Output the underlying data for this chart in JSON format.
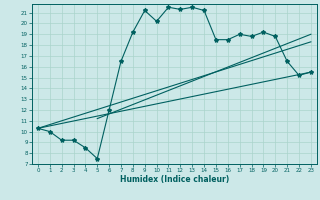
{
  "title": "",
  "xlabel": "Humidex (Indice chaleur)",
  "bg_color": "#cce8e8",
  "line_color": "#006060",
  "grid_color": "#aad4cc",
  "xlim": [
    -0.5,
    23.5
  ],
  "ylim": [
    7,
    21.8
  ],
  "yticks": [
    7,
    8,
    9,
    10,
    11,
    12,
    13,
    14,
    15,
    16,
    17,
    18,
    19,
    20,
    21
  ],
  "xticks": [
    0,
    1,
    2,
    3,
    4,
    5,
    6,
    7,
    8,
    9,
    10,
    11,
    12,
    13,
    14,
    15,
    16,
    17,
    18,
    19,
    20,
    21,
    22,
    23
  ],
  "scatter_x": [
    0,
    1,
    2,
    3,
    4,
    5,
    6,
    7,
    8,
    9,
    10,
    11,
    12,
    13,
    14,
    15,
    16,
    17,
    18,
    19,
    20,
    21,
    22,
    23
  ],
  "scatter_y": [
    10.3,
    10.0,
    9.2,
    9.2,
    8.5,
    7.5,
    12.0,
    16.5,
    19.2,
    21.2,
    20.2,
    21.5,
    21.3,
    21.5,
    21.2,
    18.5,
    18.5,
    19.0,
    18.8,
    19.2,
    18.8,
    16.5,
    15.2,
    15.5
  ],
  "line1_x": [
    0,
    23
  ],
  "line1_y": [
    10.3,
    15.5
  ],
  "line2_x": [
    0,
    23
  ],
  "line2_y": [
    10.3,
    18.3
  ],
  "line3_x": [
    5,
    23
  ],
  "line3_y": [
    11.2,
    19.0
  ]
}
